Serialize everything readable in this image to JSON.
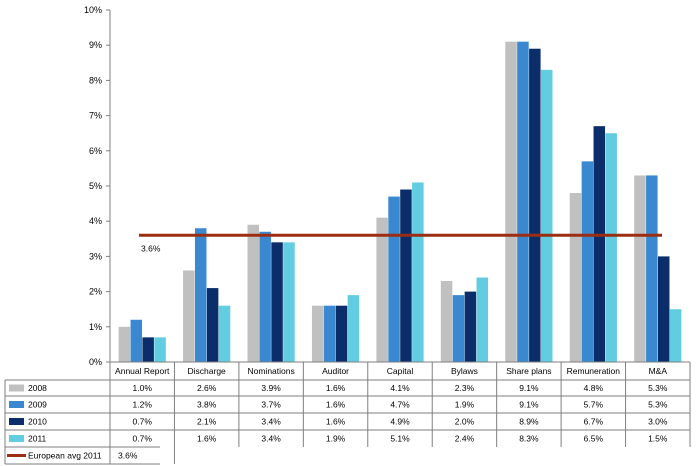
{
  "chart_data": {
    "type": "bar",
    "categories": [
      "Annual Report",
      "Discharge",
      "Nominations",
      "Auditor",
      "Capital",
      "Bylaws",
      "Share plans",
      "Remuneration",
      "M&A"
    ],
    "series": [
      {
        "name": "2008",
        "color": "#c0c0c0",
        "values": [
          1.0,
          2.6,
          3.9,
          1.6,
          4.1,
          2.3,
          9.1,
          4.8,
          5.3
        ],
        "labels": [
          "1.0%",
          "2.6%",
          "3.9%",
          "1.6%",
          "4.1%",
          "2.3%",
          "9.1%",
          "4.8%",
          "5.3%"
        ]
      },
      {
        "name": "2009",
        "color": "#3a88d0",
        "values": [
          1.2,
          3.8,
          3.7,
          1.6,
          4.7,
          1.9,
          9.1,
          5.7,
          5.3
        ],
        "labels": [
          "1.2%",
          "3.8%",
          "3.7%",
          "1.6%",
          "4.7%",
          "1.9%",
          "9.1%",
          "5.7%",
          "5.3%"
        ]
      },
      {
        "name": "2010",
        "color": "#0b2e6b",
        "values": [
          0.7,
          2.1,
          3.4,
          1.6,
          4.9,
          2.0,
          8.9,
          6.7,
          3.0
        ],
        "labels": [
          "0.7%",
          "2.1%",
          "3.4%",
          "1.6%",
          "4.9%",
          "2.0%",
          "8.9%",
          "6.7%",
          "3.0%"
        ]
      },
      {
        "name": "2011",
        "color": "#62cde0",
        "values": [
          0.7,
          1.6,
          3.4,
          1.9,
          5.1,
          2.4,
          8.3,
          6.5,
          1.5
        ],
        "labels": [
          "0.7%",
          "1.6%",
          "3.4%",
          "1.9%",
          "5.1%",
          "2.4%",
          "8.3%",
          "6.5%",
          "1.5%"
        ]
      }
    ],
    "reference_line": {
      "name": "European avg 2011",
      "value": 3.6,
      "label": "3.6%",
      "color": "#9b2d12"
    },
    "yticks": [
      "0%",
      "1%",
      "2%",
      "3%",
      "4%",
      "5%",
      "6%",
      "7%",
      "8%",
      "9%",
      "10%"
    ],
    "ylim": [
      0,
      10
    ],
    "grid": false,
    "legend": "data table below chart"
  }
}
